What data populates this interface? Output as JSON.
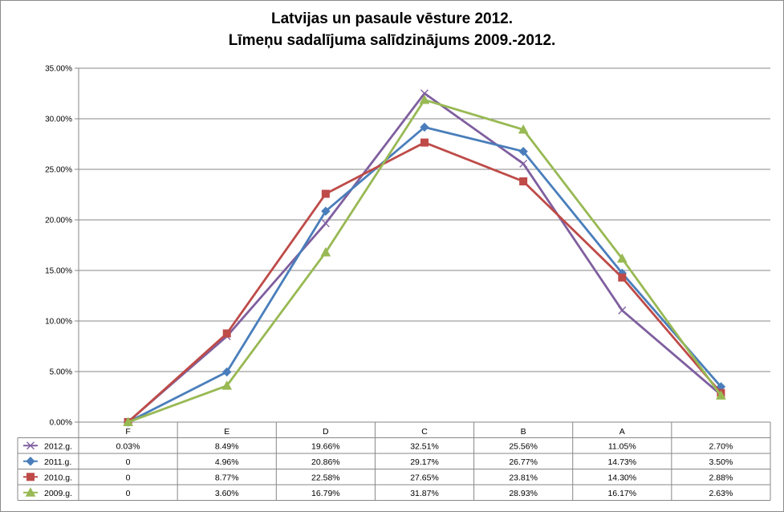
{
  "chart_data": {
    "type": "line",
    "title": [
      "Latvijas un pasaule vēsture 2012.",
      "Līmeņu sadalījuma salīdzinājums 2009.-2012."
    ],
    "categories": [
      "F",
      "E",
      "D",
      "C",
      "B",
      "A",
      ""
    ],
    "ylim": [
      0,
      35
    ],
    "yticks": [
      "0.00%",
      "5.00%",
      "10.00%",
      "15.00%",
      "20.00%",
      "25.00%",
      "30.00%",
      "35.00%"
    ],
    "grid": true,
    "legend": "data-table-left",
    "series": [
      {
        "name": "2012.g.",
        "color": "#7f5f9f",
        "marker": "x",
        "values": [
          0.03,
          8.49,
          19.66,
          32.51,
          25.56,
          11.05,
          2.7
        ],
        "labels": [
          "0.03%",
          "8.49%",
          "19.66%",
          "32.51%",
          "25.56%",
          "11.05%",
          "2.70%"
        ]
      },
      {
        "name": "2011.g.",
        "color": "#4a7ebb",
        "marker": "diamond",
        "values": [
          0,
          4.96,
          20.86,
          29.17,
          26.77,
          14.73,
          3.5
        ],
        "labels": [
          "0",
          "4.96%",
          "20.86%",
          "29.17%",
          "26.77%",
          "14.73%",
          "3.50%"
        ]
      },
      {
        "name": "2010.g.",
        "color": "#be4b48",
        "marker": "square",
        "values": [
          0,
          8.77,
          22.58,
          27.65,
          23.81,
          14.3,
          2.88
        ],
        "labels": [
          "0",
          "8.77%",
          "22.58%",
          "27.65%",
          "23.81%",
          "14.30%",
          "2.88%"
        ]
      },
      {
        "name": "2009.g.",
        "color": "#98b954",
        "marker": "triangle",
        "values": [
          0,
          3.6,
          16.79,
          31.87,
          28.93,
          16.17,
          2.63
        ],
        "labels": [
          "0",
          "3.60%",
          "16.79%",
          "31.87%",
          "28.93%",
          "16.17%",
          "2.63%"
        ]
      }
    ]
  }
}
